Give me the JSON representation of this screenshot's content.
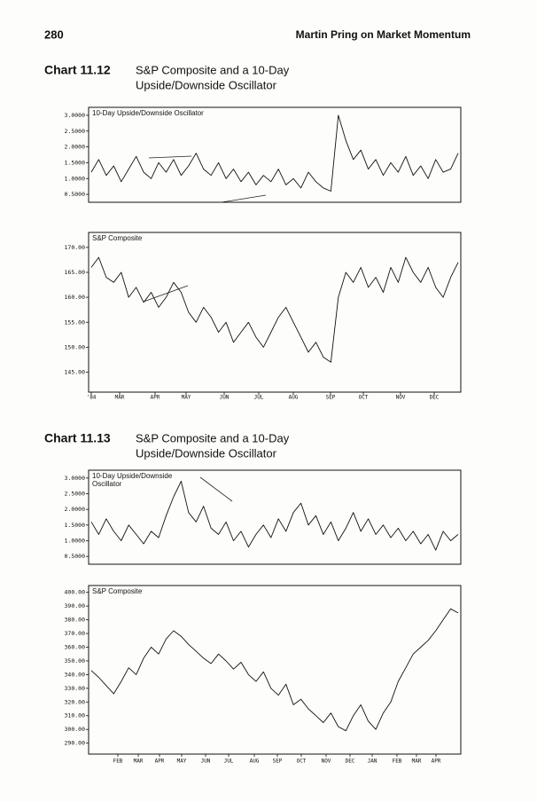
{
  "header": {
    "page_number": "280",
    "running_head": "Martin Pring on Market Momentum"
  },
  "figures": [
    {
      "label": "Chart 11.12",
      "title": [
        "S&P Composite and a 10-Day",
        "Upside/Downside Oscillator"
      ],
      "months": [
        "'84",
        "MAR",
        "APR",
        "MAY",
        "JUN",
        "JUL",
        "AUG",
        "SEP",
        "OCT",
        "NOV",
        "DEC"
      ],
      "panels": [
        {
          "type": "line",
          "label": [
            "10-Day Upside/Downside Oscillator"
          ],
          "ylim": [
            0.25,
            3.25
          ],
          "yticks": [
            {
              "value": 3,
              "label": "3.0000"
            },
            {
              "value": 2.5,
              "label": "2.5000"
            },
            {
              "value": 2,
              "label": "2.0000"
            },
            {
              "value": 1.5,
              "label": "1.5000"
            },
            {
              "value": 1,
              "label": "1.0000"
            },
            {
              "value": 0.5,
              "label": "0.5000"
            }
          ],
          "values": [
            1.2,
            1.6,
            1.1,
            1.4,
            0.9,
            1.3,
            1.7,
            1.2,
            1.0,
            1.5,
            1.2,
            1.6,
            1.1,
            1.4,
            1.8,
            1.3,
            1.1,
            1.5,
            1.0,
            1.3,
            0.9,
            1.2,
            0.8,
            1.1,
            0.9,
            1.3,
            0.8,
            1.0,
            0.7,
            1.2,
            0.9,
            0.7,
            0.6,
            3.0,
            2.2,
            1.6,
            1.9,
            1.3,
            1.6,
            1.1,
            1.5,
            1.2,
            1.7,
            1.1,
            1.4,
            1.0,
            1.6,
            1.2,
            1.3,
            1.8
          ]
        },
        {
          "type": "line",
          "label": [
            "S&P Composite"
          ],
          "ylim": [
            141,
            173
          ],
          "yticks": [
            {
              "value": 170,
              "label": "170.00"
            },
            {
              "value": 165,
              "label": "165.00"
            },
            {
              "value": 160,
              "label": "160.00"
            },
            {
              "value": 155,
              "label": "155.00"
            },
            {
              "value": 150,
              "label": "150.00"
            },
            {
              "value": 145,
              "label": "145.00"
            }
          ],
          "values": [
            166,
            168,
            164,
            163,
            165,
            160,
            162,
            159,
            161,
            158,
            160,
            163,
            161,
            157,
            155,
            158,
            156,
            153,
            155,
            151,
            153,
            155,
            152,
            150,
            153,
            156,
            158,
            155,
            152,
            149,
            151,
            148,
            147,
            160,
            165,
            163,
            166,
            162,
            164,
            161,
            166,
            163,
            168,
            165,
            163,
            166,
            162,
            160,
            164,
            167
          ]
        }
      ]
    },
    {
      "label": "Chart 11.13",
      "title": [
        "S&P Composite and a 10-Day",
        "Upside/Downside Oscillator"
      ],
      "months": [
        "FEB",
        "MAR",
        "APR",
        "MAY",
        "JUN",
        "JUL",
        "AUG",
        "SEP",
        "OCT",
        "NOV",
        "DEC",
        "JAN",
        "FEB",
        "MAR",
        "APR"
      ],
      "panels": [
        {
          "type": "line",
          "label": [
            "10-Day Upside/Downside",
            "Oscillator"
          ],
          "ylim": [
            0.25,
            3.25
          ],
          "yticks": [
            {
              "value": 3,
              "label": "3.0000"
            },
            {
              "value": 2.5,
              "label": "2.5000"
            },
            {
              "value": 2,
              "label": "2.0000"
            },
            {
              "value": 1.5,
              "label": "1.5000"
            },
            {
              "value": 1,
              "label": "1.0000"
            },
            {
              "value": 0.5,
              "label": "0.5000"
            }
          ],
          "values": [
            1.6,
            1.2,
            1.7,
            1.3,
            1.0,
            1.5,
            1.2,
            0.9,
            1.3,
            1.1,
            1.8,
            2.4,
            2.9,
            1.9,
            1.6,
            2.1,
            1.4,
            1.2,
            1.6,
            1.0,
            1.3,
            0.8,
            1.2,
            1.5,
            1.1,
            1.7,
            1.3,
            1.9,
            2.2,
            1.5,
            1.8,
            1.2,
            1.6,
            1.0,
            1.4,
            1.9,
            1.3,
            1.7,
            1.2,
            1.5,
            1.1,
            1.4,
            1.0,
            1.3,
            0.9,
            1.2,
            0.7,
            1.3,
            1.0,
            1.2
          ]
        },
        {
          "type": "line",
          "label": [
            "S&P Composite"
          ],
          "ylim": [
            282,
            405
          ],
          "yticks": [
            {
              "value": 400,
              "label": "400.00"
            },
            {
              "value": 390,
              "label": "390.00"
            },
            {
              "value": 380,
              "label": "380.00"
            },
            {
              "value": 370,
              "label": "370.00"
            },
            {
              "value": 360,
              "label": "360.00"
            },
            {
              "value": 350,
              "label": "350.00"
            },
            {
              "value": 340,
              "label": "340.00"
            },
            {
              "value": 330,
              "label": "330.00"
            },
            {
              "value": 320,
              "label": "320.00"
            },
            {
              "value": 310,
              "label": "310.00"
            },
            {
              "value": 300,
              "label": "300.00"
            },
            {
              "value": 290,
              "label": "290.00"
            }
          ],
          "values": [
            343,
            338,
            332,
            326,
            335,
            345,
            340,
            352,
            360,
            355,
            366,
            372,
            368,
            362,
            357,
            352,
            348,
            355,
            350,
            344,
            349,
            340,
            335,
            342,
            330,
            325,
            333,
            318,
            322,
            315,
            310,
            305,
            312,
            302,
            299,
            310,
            318,
            306,
            300,
            312,
            320,
            335,
            345,
            355,
            360,
            365,
            372,
            380,
            388,
            385
          ]
        }
      ]
    }
  ]
}
